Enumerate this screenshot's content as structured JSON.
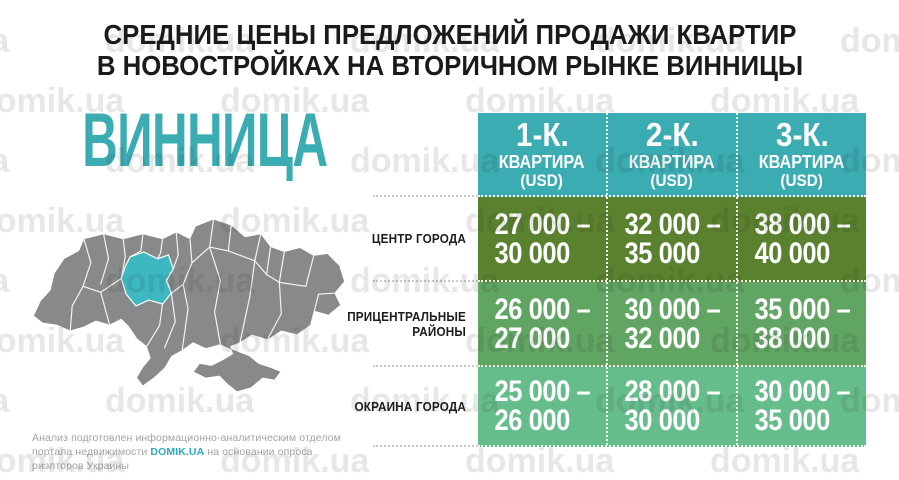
{
  "title": {
    "line1": "СРЕДНИЕ ЦЕНЫ ПРЕДЛОЖЕНИЙ ПРОДАЖИ КВАРТИР",
    "line2": "В НОВОСТРОЙКАХ НА ВТОРИЧНОМ РЫНКЕ ВИННИЦЫ"
  },
  "city": {
    "name": "ВИННИЦА"
  },
  "watermark": {
    "text": "domik.ua"
  },
  "table": {
    "header": [
      {
        "rooms": "1-К.",
        "type": "КВАРТИРА",
        "unit": "(USD)"
      },
      {
        "rooms": "2-К.",
        "type": "КВАРТИРА",
        "unit": "(USD)"
      },
      {
        "rooms": "3-К.",
        "type": "КВАРТИРА",
        "unit": "(USD)"
      }
    ],
    "rows": [
      {
        "label": "ЦЕНТР ГОРОДА",
        "cells": [
          {
            "line1": "27 000 –",
            "line2": "30 000"
          },
          {
            "line1": "32 000 –",
            "line2": "35 000"
          },
          {
            "line1": "38 000 –",
            "line2": "40 000"
          }
        ]
      },
      {
        "label": "ПРИЦЕНТРАЛЬНЫЕ РАЙОНЫ",
        "cells": [
          {
            "line1": "26 000 –",
            "line2": "27 000"
          },
          {
            "line1": "30 000 –",
            "line2": "32 000"
          },
          {
            "line1": "35 000 –",
            "line2": "38 000"
          }
        ]
      },
      {
        "label": "ОКРАИНА ГОРОДА",
        "cells": [
          {
            "line1": "25 000 –",
            "line2": "26 000"
          },
          {
            "line1": "28 000 –",
            "line2": "30 000"
          },
          {
            "line1": "30 000 –",
            "line2": "35 000"
          }
        ]
      }
    ]
  },
  "footer": {
    "text_before": "Анализ подготовлен информационно-аналитическим отделом портала недвижимости ",
    "brand": "DOMIK.UA",
    "text_after": " на основании опроса риэлторов Украины"
  },
  "colors": {
    "accent_teal": "#3AACB2",
    "map_highlight": "#3DB8C0",
    "map_gray": "#88898B",
    "green_dark": "#5A822E",
    "green_mid": "#61A562",
    "green_light": "#66BD8C",
    "title_color": "#1A1A1A",
    "label_color": "#1C1C1C",
    "footer_gray": "#A3A3A3",
    "brand_teal": "#2BAAC4"
  },
  "chart_data": {
    "type": "table",
    "title": "СРЕДНИЕ ЦЕНЫ ПРЕДЛОЖЕНИЙ ПРОДАЖИ КВАРТИР В НОВОСТРОЙКАХ НА ВТОРИЧНОМ РЫНКЕ ВИННИЦЫ",
    "city": "ВИННИЦА",
    "unit": "USD",
    "columns": [
      "1-К. КВАРТИРА (USD)",
      "2-К. КВАРТИРА (USD)",
      "3-К. КВАРТИРА (USD)"
    ],
    "rows": [
      {
        "district": "ЦЕНТР ГОРОДА",
        "ranges_usd": [
          [
            27000,
            30000
          ],
          [
            32000,
            35000
          ],
          [
            38000,
            40000
          ]
        ]
      },
      {
        "district": "ПРИЦЕНТРАЛЬНЫЕ РАЙОНЫ",
        "ranges_usd": [
          [
            26000,
            27000
          ],
          [
            30000,
            32000
          ],
          [
            35000,
            38000
          ]
        ]
      },
      {
        "district": "ОКРАИНА ГОРОДА",
        "ranges_usd": [
          [
            25000,
            26000
          ],
          [
            28000,
            30000
          ],
          [
            30000,
            35000
          ]
        ]
      }
    ]
  }
}
